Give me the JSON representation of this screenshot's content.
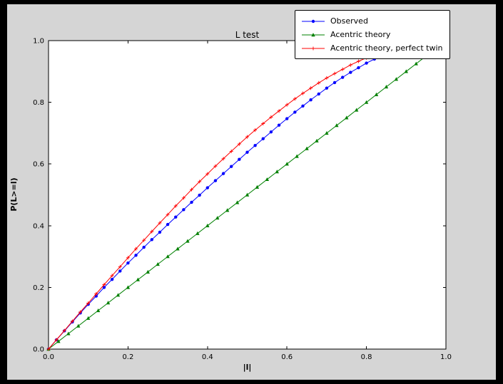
{
  "figure": {
    "bg_outer": "#000000",
    "bg_figure": "#d5d5d5",
    "bg_axes": "#ffffff",
    "axes_edge": "#000000"
  },
  "chart_data": {
    "type": "line",
    "title": "L test",
    "xlabel": "|l|",
    "ylabel": "P(L>=l)",
    "xlim": [
      0.0,
      1.0
    ],
    "ylim": [
      0.0,
      1.0
    ],
    "xticks": [
      0.0,
      0.2,
      0.4,
      0.6,
      0.8,
      1.0
    ],
    "yticks": [
      0.0,
      0.2,
      0.4,
      0.6,
      0.8,
      1.0
    ],
    "grid": false,
    "legend_position": "upper right",
    "series": [
      {
        "name": "Observed",
        "color": "#0000ff",
        "marker": "circle",
        "x": [
          0.0,
          0.02,
          0.04,
          0.06,
          0.08,
          0.1,
          0.12,
          0.14,
          0.16,
          0.18,
          0.2,
          0.22,
          0.24,
          0.26,
          0.28,
          0.3,
          0.32,
          0.34,
          0.36,
          0.38,
          0.4,
          0.42,
          0.44,
          0.46,
          0.48,
          0.5,
          0.52,
          0.54,
          0.56,
          0.58,
          0.6,
          0.62,
          0.64,
          0.66,
          0.68,
          0.7,
          0.72,
          0.74,
          0.76,
          0.78,
          0.8,
          0.82,
          0.84,
          0.86
        ],
        "y": [
          0.0,
          0.03,
          0.059,
          0.088,
          0.117,
          0.145,
          0.172,
          0.2,
          0.226,
          0.253,
          0.279,
          0.304,
          0.33,
          0.355,
          0.379,
          0.404,
          0.428,
          0.452,
          0.476,
          0.499,
          0.523,
          0.546,
          0.569,
          0.592,
          0.615,
          0.638,
          0.66,
          0.682,
          0.704,
          0.726,
          0.747,
          0.768,
          0.788,
          0.808,
          0.827,
          0.846,
          0.864,
          0.881,
          0.897,
          0.912,
          0.927,
          0.94,
          0.952,
          0.958
        ]
      },
      {
        "name": "Acentric theory",
        "color": "#008000",
        "marker": "triangle",
        "x": [
          0.0,
          0.025,
          0.05,
          0.075,
          0.1,
          0.125,
          0.15,
          0.175,
          0.2,
          0.225,
          0.25,
          0.275,
          0.3,
          0.325,
          0.35,
          0.375,
          0.4,
          0.425,
          0.45,
          0.475,
          0.5,
          0.525,
          0.55,
          0.575,
          0.6,
          0.625,
          0.65,
          0.675,
          0.7,
          0.725,
          0.75,
          0.775,
          0.8,
          0.825,
          0.85,
          0.875,
          0.9,
          0.925,
          0.95,
          0.975
        ],
        "y": [
          0.0,
          0.025,
          0.05,
          0.075,
          0.1,
          0.125,
          0.15,
          0.175,
          0.2,
          0.225,
          0.25,
          0.275,
          0.3,
          0.325,
          0.35,
          0.375,
          0.4,
          0.425,
          0.45,
          0.475,
          0.5,
          0.525,
          0.55,
          0.575,
          0.6,
          0.625,
          0.65,
          0.675,
          0.7,
          0.725,
          0.75,
          0.775,
          0.8,
          0.825,
          0.85,
          0.875,
          0.9,
          0.925,
          0.95,
          0.975
        ]
      },
      {
        "name": "Acentric theory, perfect twin",
        "color": "#ff0000",
        "marker": "plus",
        "x": [
          0.0,
          0.02,
          0.04,
          0.06,
          0.08,
          0.1,
          0.12,
          0.14,
          0.16,
          0.18,
          0.2,
          0.22,
          0.24,
          0.26,
          0.28,
          0.3,
          0.32,
          0.34,
          0.36,
          0.38,
          0.4,
          0.42,
          0.44,
          0.46,
          0.48,
          0.5,
          0.52,
          0.54,
          0.56,
          0.58,
          0.6,
          0.62,
          0.64,
          0.66,
          0.68,
          0.7,
          0.72,
          0.74,
          0.76,
          0.78,
          0.8,
          0.82,
          0.84,
          0.86,
          0.88,
          0.9
        ],
        "y": [
          0.0,
          0.03,
          0.06,
          0.09,
          0.12,
          0.149,
          0.179,
          0.209,
          0.238,
          0.267,
          0.296,
          0.325,
          0.353,
          0.381,
          0.409,
          0.436,
          0.464,
          0.49,
          0.517,
          0.543,
          0.568,
          0.593,
          0.617,
          0.641,
          0.665,
          0.688,
          0.71,
          0.731,
          0.752,
          0.772,
          0.792,
          0.811,
          0.829,
          0.846,
          0.863,
          0.879,
          0.893,
          0.907,
          0.921,
          0.933,
          0.944,
          0.954,
          0.964,
          0.972,
          0.979,
          0.986
        ]
      }
    ]
  }
}
